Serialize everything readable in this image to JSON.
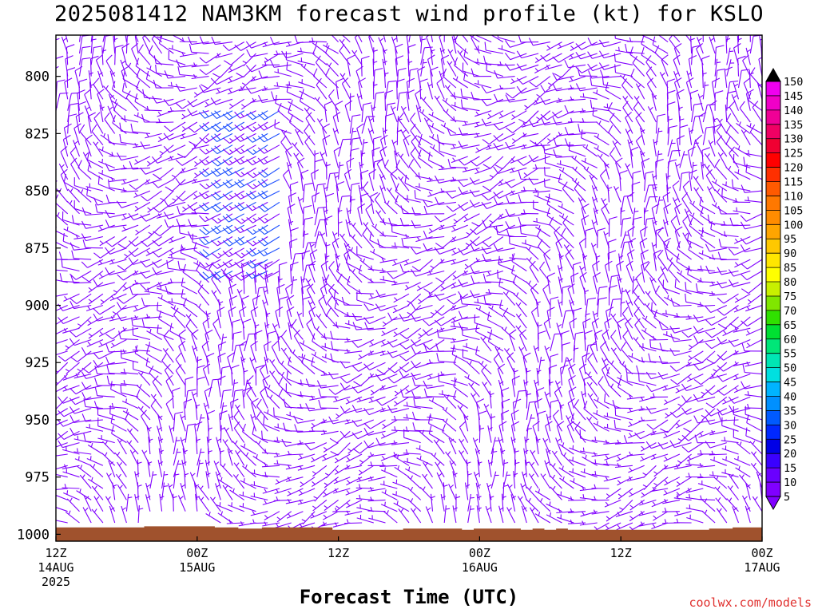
{
  "title": "2025081412 NAM3KM forecast wind profile (kt) for KSLO",
  "credit": "coolwx.com/models",
  "chart_data": {
    "type": "wind-barb-profile",
    "title": "2025081412 NAM3KM forecast wind profile (kt) for KSLO",
    "xlabel": "Forecast Time (UTC)",
    "ylabel": "",
    "y_ticks": [
      800,
      825,
      850,
      875,
      900,
      925,
      950,
      975,
      1000
    ],
    "ylim": [
      1003,
      782
    ],
    "y_scale": "linear-pressure-hPa",
    "xlim_hours": [
      0,
      60
    ],
    "x_ticks": [
      {
        "hour": 0,
        "lines": [
          "12Z",
          "14AUG",
          "2025"
        ]
      },
      {
        "hour": 12,
        "lines": [
          "00Z",
          "15AUG"
        ]
      },
      {
        "hour": 24,
        "lines": [
          "12Z"
        ]
      },
      {
        "hour": 36,
        "lines": [
          "00Z",
          "16AUG"
        ]
      },
      {
        "hour": 48,
        "lines": [
          "12Z"
        ]
      },
      {
        "hour": 60,
        "lines": [
          "00Z",
          "17AUG"
        ]
      }
    ],
    "barb_color_low": "#8000ff",
    "barb_color_mid": "#1e50ff",
    "terrain_color": "#a0522d",
    "colorbar": {
      "values": [
        5,
        10,
        15,
        20,
        25,
        30,
        35,
        40,
        45,
        50,
        55,
        60,
        65,
        70,
        75,
        80,
        85,
        90,
        95,
        100,
        105,
        110,
        115,
        120,
        125,
        130,
        135,
        140,
        145,
        150
      ],
      "colors": [
        "#8000ff",
        "#6a00ff",
        "#3a00ff",
        "#0000e6",
        "#0028ff",
        "#005aff",
        "#0090ff",
        "#00b4ff",
        "#00e0e0",
        "#00e6b4",
        "#00e678",
        "#00e032",
        "#30e000",
        "#80e600",
        "#c8f000",
        "#ffff00",
        "#ffe600",
        "#ffc800",
        "#ffa500",
        "#ff8c00",
        "#ff7800",
        "#ff5a00",
        "#ff3000",
        "#ff0000",
        "#f00032",
        "#f00064",
        "#f00096",
        "#f000c8",
        "#f000f0",
        "#f000f0"
      ]
    },
    "wind_field": {
      "x_hours": [
        0,
        1,
        2,
        3,
        4,
        5,
        6,
        7,
        8,
        9,
        10,
        11,
        12,
        13,
        14,
        15,
        16,
        17,
        18,
        19,
        20,
        21,
        22,
        23,
        24,
        25,
        26,
        27,
        28,
        29,
        30,
        31,
        32,
        33,
        34,
        35,
        36,
        37,
        38,
        39,
        40,
        41,
        42,
        43,
        44,
        45,
        46,
        47,
        48,
        49,
        50,
        51,
        52,
        53,
        54,
        55,
        56,
        57,
        58,
        59,
        60
      ],
      "levels_hPa": [
        785,
        790,
        795,
        800,
        805,
        810,
        815,
        820,
        825,
        830,
        835,
        840,
        845,
        850,
        855,
        860,
        865,
        870,
        875,
        880,
        885,
        890,
        895,
        900,
        905,
        910,
        915,
        920,
        925,
        930,
        935,
        940,
        945,
        950,
        955,
        960,
        965,
        970,
        975,
        980,
        985,
        990,
        995,
        1000
      ],
      "speed_range_kt": [
        5,
        25
      ],
      "typical_speed_kt": 10,
      "max_speed_kt_near": {
        "hour": 18,
        "level_hPa": 845,
        "speed_kt": 25
      }
    },
    "terrain_surface_hPa": [
      997,
      997,
      997,
      997,
      997,
      997,
      997,
      997,
      996.5,
      996.5,
      996.5,
      996.5,
      996.5,
      996.5,
      997,
      997,
      997.5,
      997.5,
      997,
      997,
      997,
      997,
      997,
      997,
      998,
      998,
      998,
      998,
      998,
      998,
      997.5,
      997.5,
      997.5,
      997.5,
      997.5,
      998,
      997.5,
      997.5,
      997.5,
      997.5,
      998,
      997.5,
      998,
      997.5,
      998,
      998,
      998,
      998,
      998,
      998,
      998,
      998,
      998,
      998,
      998,
      998,
      997.5,
      997.5,
      997,
      997,
      997
    ]
  }
}
